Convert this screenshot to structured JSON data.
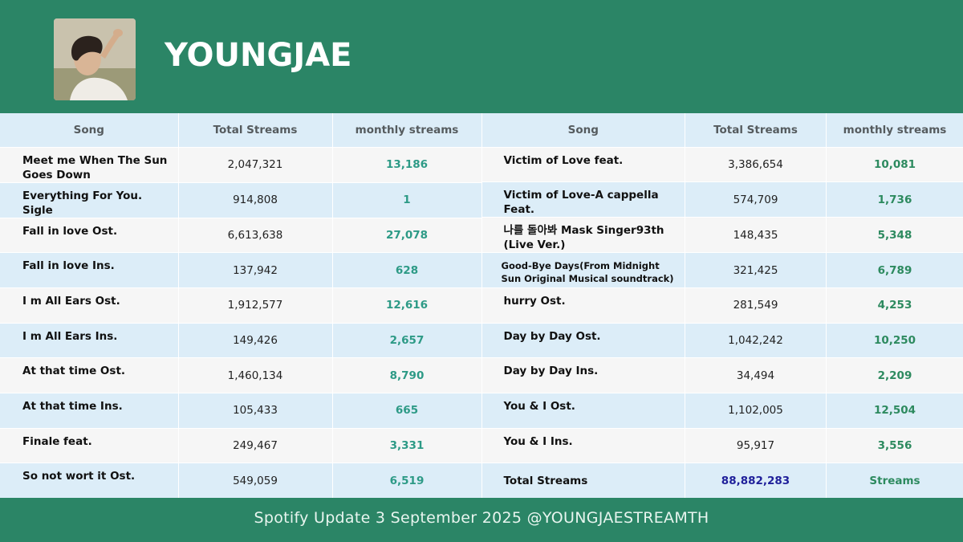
{
  "header": {
    "artist_name": "YOUNGJAE"
  },
  "columns": {
    "song": "Song",
    "total": "Total Streams",
    "monthly": "monthly streams"
  },
  "left_rows": [
    {
      "song": "Meet me When The Sun Goes Down",
      "total": "2,047,321",
      "monthly": "13,186"
    },
    {
      "song": "Everything For You. Sigle",
      "total": "914,808",
      "monthly": "1"
    },
    {
      "song": "Fall in love Ost.",
      "total": "6,613,638",
      "monthly": "27,078"
    },
    {
      "song": "Fall in love Ins.",
      "total": "137,942",
      "monthly": "628"
    },
    {
      "song": "I m All Ears Ost.",
      "total": "1,912,577",
      "monthly": "12,616"
    },
    {
      "song": "I m All Ears Ins.",
      "total": "149,426",
      "monthly": "2,657"
    },
    {
      "song": "At that time Ost.",
      "total": "1,460,134",
      "monthly": "8,790"
    },
    {
      "song": "At that time Ins.",
      "total": "105,433",
      "monthly": "665"
    },
    {
      "song": "Finale feat.",
      "total": "249,467",
      "monthly": "3,331"
    },
    {
      "song": "So not wort it Ost.",
      "total": "549,059",
      "monthly": "6,519"
    }
  ],
  "right_rows": [
    {
      "song": "Victim of Love feat.",
      "total": "3,386,654",
      "monthly": "10,081"
    },
    {
      "song": "Victim of Love-A cappella Feat.",
      "total": "574,709",
      "monthly": "1,736"
    },
    {
      "song": "나를 돌아봐 Mask Singer93th (Live Ver.)",
      "total": "148,435",
      "monthly": "5,348"
    },
    {
      "song": "Good-Bye Days(From Midnight Sun Original Musical soundtrack)",
      "total": "321,425",
      "monthly": "6,789"
    },
    {
      "song": "hurry Ost.",
      "total": "281,549",
      "monthly": "4,253"
    },
    {
      "song": "Day by Day Ost.",
      "total": "1,042,242",
      "monthly": "10,250"
    },
    {
      "song": "Day by Day Ins.",
      "total": "34,494",
      "monthly": "2,209"
    },
    {
      "song": "You & I Ost.",
      "total": "1,102,005",
      "monthly": "12,504"
    },
    {
      "song": "You & I Ins.",
      "total": "95,917",
      "monthly": "3,556"
    }
  ],
  "summary": {
    "label": "Total Streams",
    "value": "88,882,283",
    "unit": "Streams"
  },
  "footer": {
    "text": "Spotify Update 3 September 2025 @YOUNGJAESTREAMTH"
  }
}
